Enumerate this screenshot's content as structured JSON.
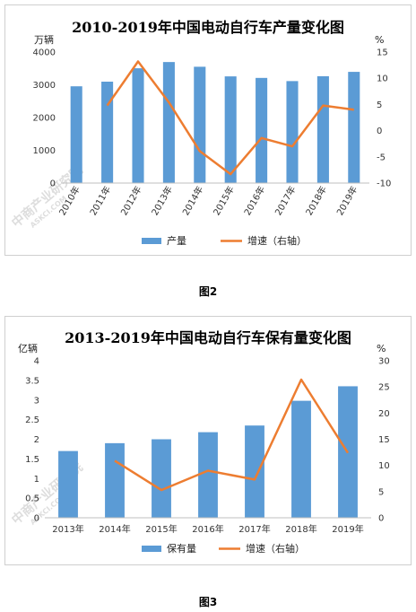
{
  "chart_data": [
    {
      "type": "bar",
      "title": "2010-2019年中国电动自行车产量变化图",
      "y_left_unit": "万辆",
      "y_right_unit": "%",
      "categories": [
        "2010年",
        "2011年",
        "2012年",
        "2013年",
        "2014年",
        "2015年",
        "2016年",
        "2017年",
        "2018年",
        "2019年"
      ],
      "ylim_left": [
        0,
        4000
      ],
      "yticks_left": [
        "0",
        "1000",
        "2000",
        "3000",
        "4000"
      ],
      "ylim_right": [
        -10,
        15
      ],
      "yticks_right": [
        "-10",
        "-5",
        "0",
        "5",
        "10",
        "15"
      ],
      "grid": false,
      "legend_position": "bottom",
      "series": [
        {
          "name": "产量",
          "kind": "bar",
          "axis": "left",
          "color": "#5B9BD5",
          "values": [
            2954,
            3096,
            3505,
            3695,
            3551,
            3257,
            3210,
            3113,
            3262,
            3395
          ]
        },
        {
          "name": "增速（右轴）",
          "kind": "line",
          "axis": "right",
          "color": "#ED7D31",
          "values": [
            null,
            4.8,
            13.2,
            5.4,
            -3.9,
            -8.3,
            -1.4,
            -3.0,
            4.8,
            4.0
          ]
        }
      ],
      "watermark": {
        "main": "中商产业研究院",
        "sub": "ASKCI.COM"
      }
    },
    {
      "type": "bar",
      "title": "2013-2019年中国电动自行车保有量变化图",
      "y_left_unit": "亿辆",
      "y_right_unit": "%",
      "categories": [
        "2013年",
        "2014年",
        "2015年",
        "2016年",
        "2017年",
        "2018年",
        "2019年"
      ],
      "ylim_left": [
        0,
        4
      ],
      "yticks_left": [
        "0",
        "0.5",
        "1",
        "1.5",
        "2",
        "2.5",
        "3",
        "3.5",
        "4"
      ],
      "ylim_right": [
        0,
        30
      ],
      "yticks_right": [
        "0",
        "5",
        "10",
        "15",
        "20",
        "25",
        "30"
      ],
      "grid": false,
      "legend_position": "bottom",
      "series": [
        {
          "name": "保有量",
          "kind": "bar",
          "axis": "left",
          "color": "#5B9BD5",
          "values": [
            1.7,
            1.9,
            2.0,
            2.18,
            2.35,
            2.98,
            3.35
          ]
        },
        {
          "name": "增速（右轴）",
          "kind": "line",
          "axis": "right",
          "color": "#ED7D31",
          "values": [
            null,
            10.9,
            5.3,
            9.0,
            7.3,
            26.4,
            12.4
          ]
        }
      ],
      "watermark": {
        "main": "中商产业研究院",
        "sub": "ASKCI.COM"
      }
    }
  ],
  "captions": [
    "图2",
    "图3"
  ]
}
